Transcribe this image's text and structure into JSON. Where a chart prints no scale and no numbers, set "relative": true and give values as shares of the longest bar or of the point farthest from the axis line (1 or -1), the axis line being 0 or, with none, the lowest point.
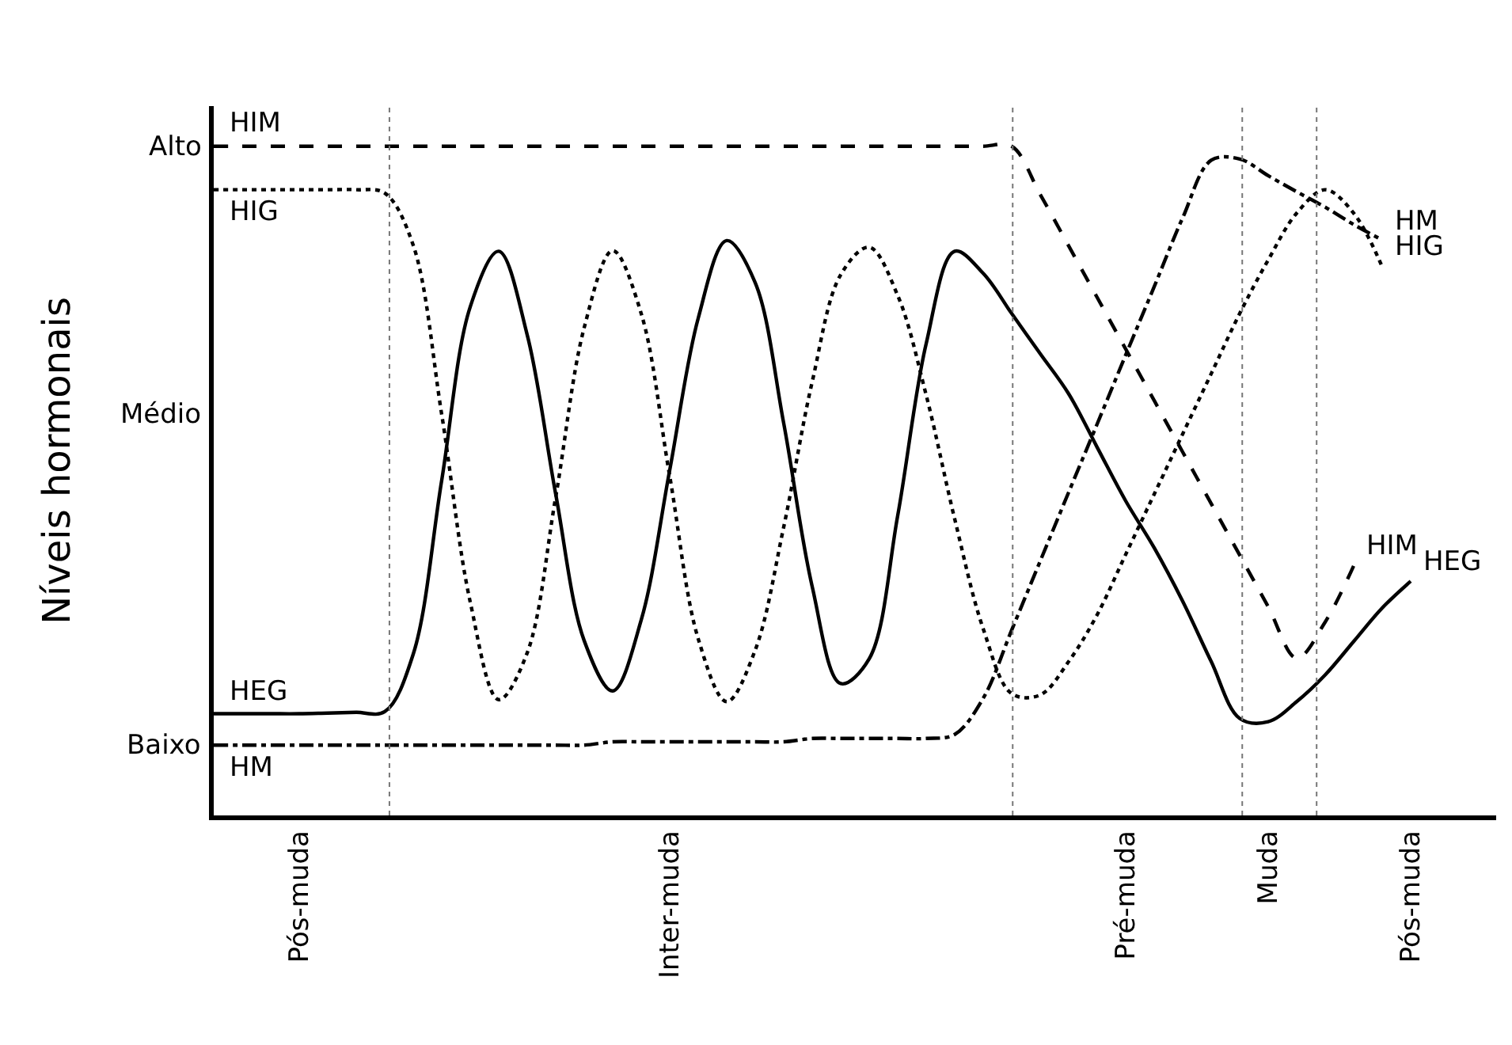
{
  "chart_data": {
    "type": "line",
    "ylabel": "Níveis hormonais",
    "relative": true,
    "categories": [
      null,
      null,
      null,
      "Pós-muda",
      null,
      null,
      null,
      null,
      null,
      null,
      null,
      null,
      null,
      null,
      null,
      null,
      "Inter-muda",
      null,
      null,
      null,
      null,
      null,
      null,
      null,
      null,
      null,
      null,
      null,
      null,
      null,
      null,
      null,
      "Pré-muda",
      null,
      null,
      null,
      null,
      "Muda",
      null,
      null,
      null,
      null,
      "Pós-muda",
      null,
      null
    ],
    "annotations": [
      "Alto",
      "Médio",
      "Baixo"
    ],
    "grid": "x",
    "legend": false,
    "marker": "none",
    "series": [
      {
        "name": "HIM",
        "color": "#000000",
        "line_style": "dashed",
        "values": [
          1,
          1,
          1,
          1,
          1,
          1,
          1,
          1,
          1,
          1,
          1,
          1,
          1,
          1,
          1,
          1,
          1,
          1,
          1,
          1,
          1,
          1,
          1,
          1,
          1,
          1,
          1,
          1,
          1,
          0.928,
          0.851,
          0.774,
          0.697,
          0.62,
          0.543,
          0.466,
          0.389,
          0.312,
          0.235,
          0.289,
          0.373,
          null,
          null,
          null,
          null
        ]
      },
      {
        "name": "HIG",
        "color": "#000000",
        "line_style": "dotted",
        "values": [
          0.935,
          0.935,
          0.935,
          0.935,
          0.935,
          0.935,
          0.93,
          0.852,
          0.599,
          0.319,
          0.173,
          0.243,
          0.476,
          0.729,
          0.844,
          0.75,
          0.507,
          0.264,
          0.17,
          0.247,
          0.431,
          0.648,
          0.808,
          0.849,
          0.777,
          0.628,
          0.443,
          0.279,
          0.182,
          0.18,
          0.23,
          0.3,
          0.39,
          0.48,
          0.57,
          0.66,
          0.75,
          0.83,
          0.9,
          0.935,
          0.9,
          0.82,
          null,
          null,
          null
        ]
      },
      {
        "name": "HEG",
        "color": "#000000",
        "line_style": "solid",
        "values": [
          0.152,
          0.152,
          0.152,
          0.152,
          0.153,
          0.154,
          0.155,
          0.241,
          0.501,
          0.76,
          0.843,
          0.718,
          0.48,
          0.261,
          0.186,
          0.292,
          0.516,
          0.743,
          0.859,
          0.796,
          0.586,
          0.342,
          0.197,
          0.234,
          0.448,
          0.705,
          0.843,
          0.81,
          0.75,
          0.69,
          0.63,
          0.55,
          0.47,
          0.4,
          0.32,
          0.23,
          0.145,
          0.14,
          0.17,
          0.21,
          0.26,
          0.31,
          0.35,
          null,
          null
        ]
      },
      {
        "name": "HM",
        "color": "#000000",
        "line_style": "dashdot",
        "values": [
          0.105,
          0.105,
          0.105,
          0.105,
          0.105,
          0.105,
          0.105,
          0.105,
          0.105,
          0.105,
          0.105,
          0.105,
          0.105,
          0.105,
          0.11,
          0.11,
          0.11,
          0.11,
          0.11,
          0.11,
          0.11,
          0.115,
          0.115,
          0.115,
          0.115,
          0.115,
          0.121,
          0.175,
          0.277,
          0.38,
          0.483,
          0.585,
          0.688,
          0.79,
          0.893,
          0.979,
          0.981,
          0.956,
          0.932,
          0.909,
          0.883,
          0.86,
          null,
          null,
          null
        ]
      }
    ]
  }
}
